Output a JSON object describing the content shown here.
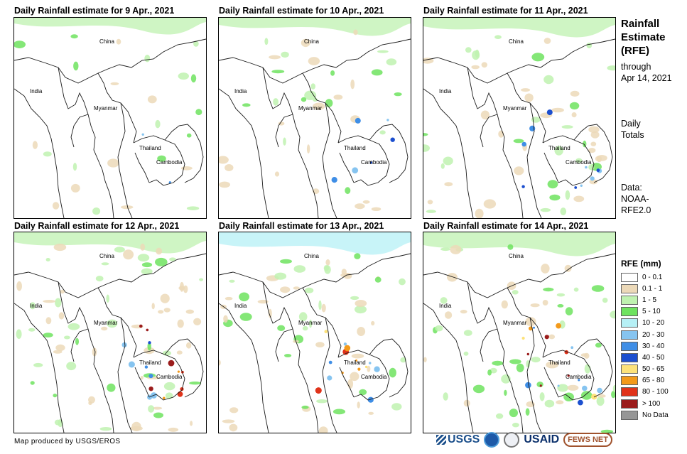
{
  "panels": [
    {
      "title": "Daily Rainfall estimate for 9 Apr., 2021"
    },
    {
      "title": "Daily Rainfall estimate for 10 Apr., 2021"
    },
    {
      "title": "Daily Rainfall estimate for 11 Apr., 2021"
    },
    {
      "title": "Daily Rainfall estimate for 12 Apr., 2021"
    },
    {
      "title": "Daily Rainfall estimate for 13 Apr., 2021"
    },
    {
      "title": "Daily Rainfall estimate for 14 Apr., 2021"
    }
  ],
  "map_labels": {
    "china": "China",
    "india": "India",
    "myanmar": "Myanmar",
    "thailand": "Thailand",
    "cambodia": "Cambodia"
  },
  "sidebar": {
    "title_line1": "Rainfall",
    "title_line2": "Estimate",
    "title_line3": "(RFE)",
    "through_line1": "through",
    "through_line2": "Apr 14, 2021",
    "daily_line1": "Daily",
    "daily_line2": "Totals",
    "data_line1": "Data:",
    "data_line2": "NOAA-",
    "data_line3": "RFE2.0"
  },
  "legend": {
    "title": "RFE (mm)",
    "items": [
      {
        "label": "0 - 0.1",
        "color": "#ffffff"
      },
      {
        "label": "0.1 - 1",
        "color": "#ecd9b8"
      },
      {
        "label": "1 - 5",
        "color": "#bff2b0"
      },
      {
        "label": "5 - 10",
        "color": "#6ee35f"
      },
      {
        "label": "10 - 20",
        "color": "#b6f0f5"
      },
      {
        "label": "20 - 30",
        "color": "#86c4f0"
      },
      {
        "label": "30 - 40",
        "color": "#3f8ee6"
      },
      {
        "label": "40 - 50",
        "color": "#1c4fcf"
      },
      {
        "label": "50 - 65",
        "color": "#fde27a"
      },
      {
        "label": "65 - 80",
        "color": "#f39a1b"
      },
      {
        "label": "80 - 100",
        "color": "#e0331a"
      },
      {
        "label": "> 100",
        "color": "#9b1c1c"
      },
      {
        "label": "No Data",
        "color": "#969696"
      }
    ]
  },
  "footer": {
    "credit": "Map produced by USGS/EROS",
    "logos": {
      "usgs": "USGS",
      "usaid": "USAID",
      "fews": "FEWS NET"
    }
  }
}
